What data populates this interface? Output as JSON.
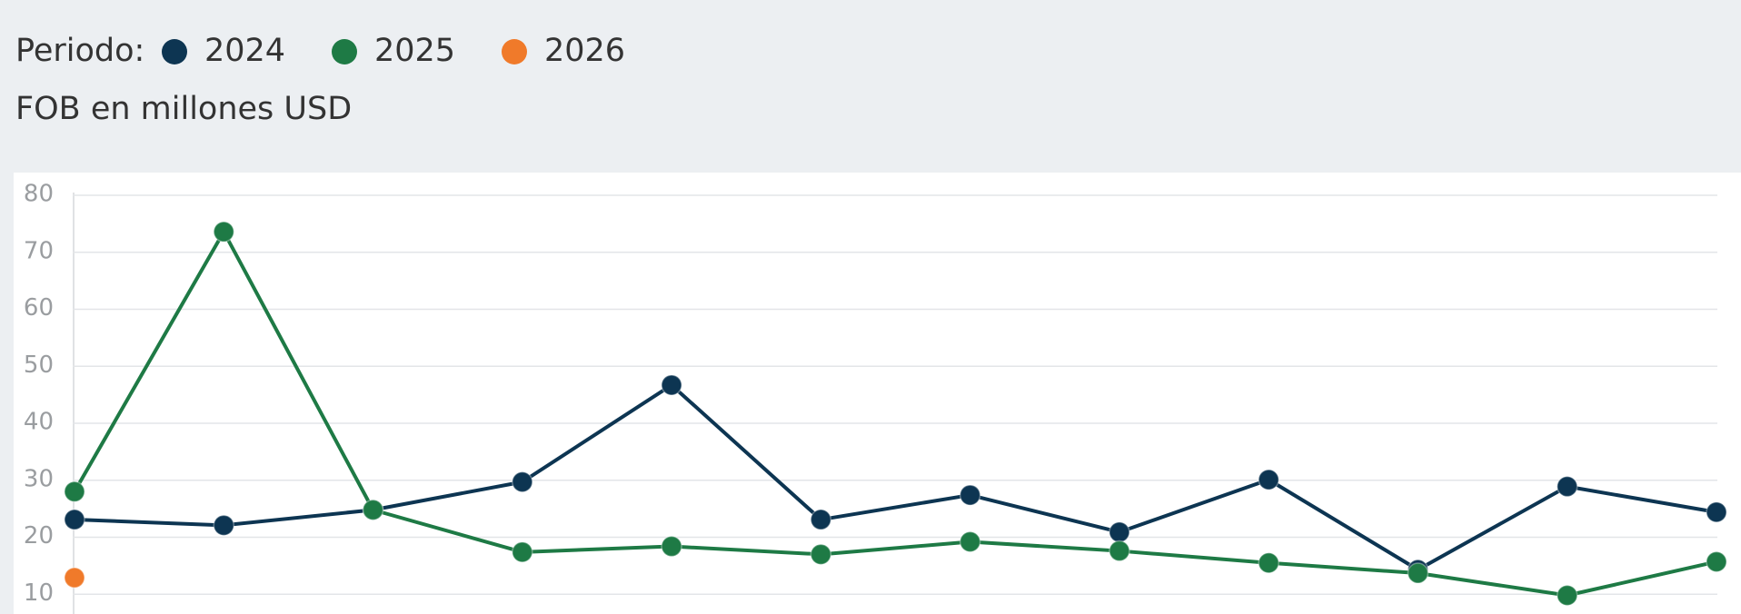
{
  "legend_label": "Periodo:",
  "chart_data": {
    "type": "line",
    "subtitle": "FOB en millones USD",
    "categories": [
      null,
      null,
      null,
      null,
      null,
      null,
      null,
      null,
      null,
      null,
      null,
      null
    ],
    "series": [
      {
        "name": "2024",
        "color": "#0d3552",
        "values": [
          23.1,
          22.1,
          24.8,
          29.7,
          46.7,
          23.1,
          27.4,
          20.9,
          30.1,
          14.3,
          28.9,
          24.4
        ]
      },
      {
        "name": "2025",
        "color": "#1e7a45",
        "values": [
          28.0,
          73.6,
          24.8,
          17.4,
          18.4,
          17.0,
          19.2,
          17.6,
          15.5,
          13.7,
          9.8,
          15.7
        ]
      },
      {
        "name": "2026",
        "color": "#f07a2a",
        "values": [
          12.9,
          null,
          null,
          null,
          null,
          null,
          null,
          null,
          null,
          null,
          null,
          null
        ]
      }
    ],
    "ylim": [
      0,
      80
    ],
    "yticks": [
      10,
      20,
      30,
      40,
      50,
      60,
      70,
      80
    ],
    "grid": true
  }
}
